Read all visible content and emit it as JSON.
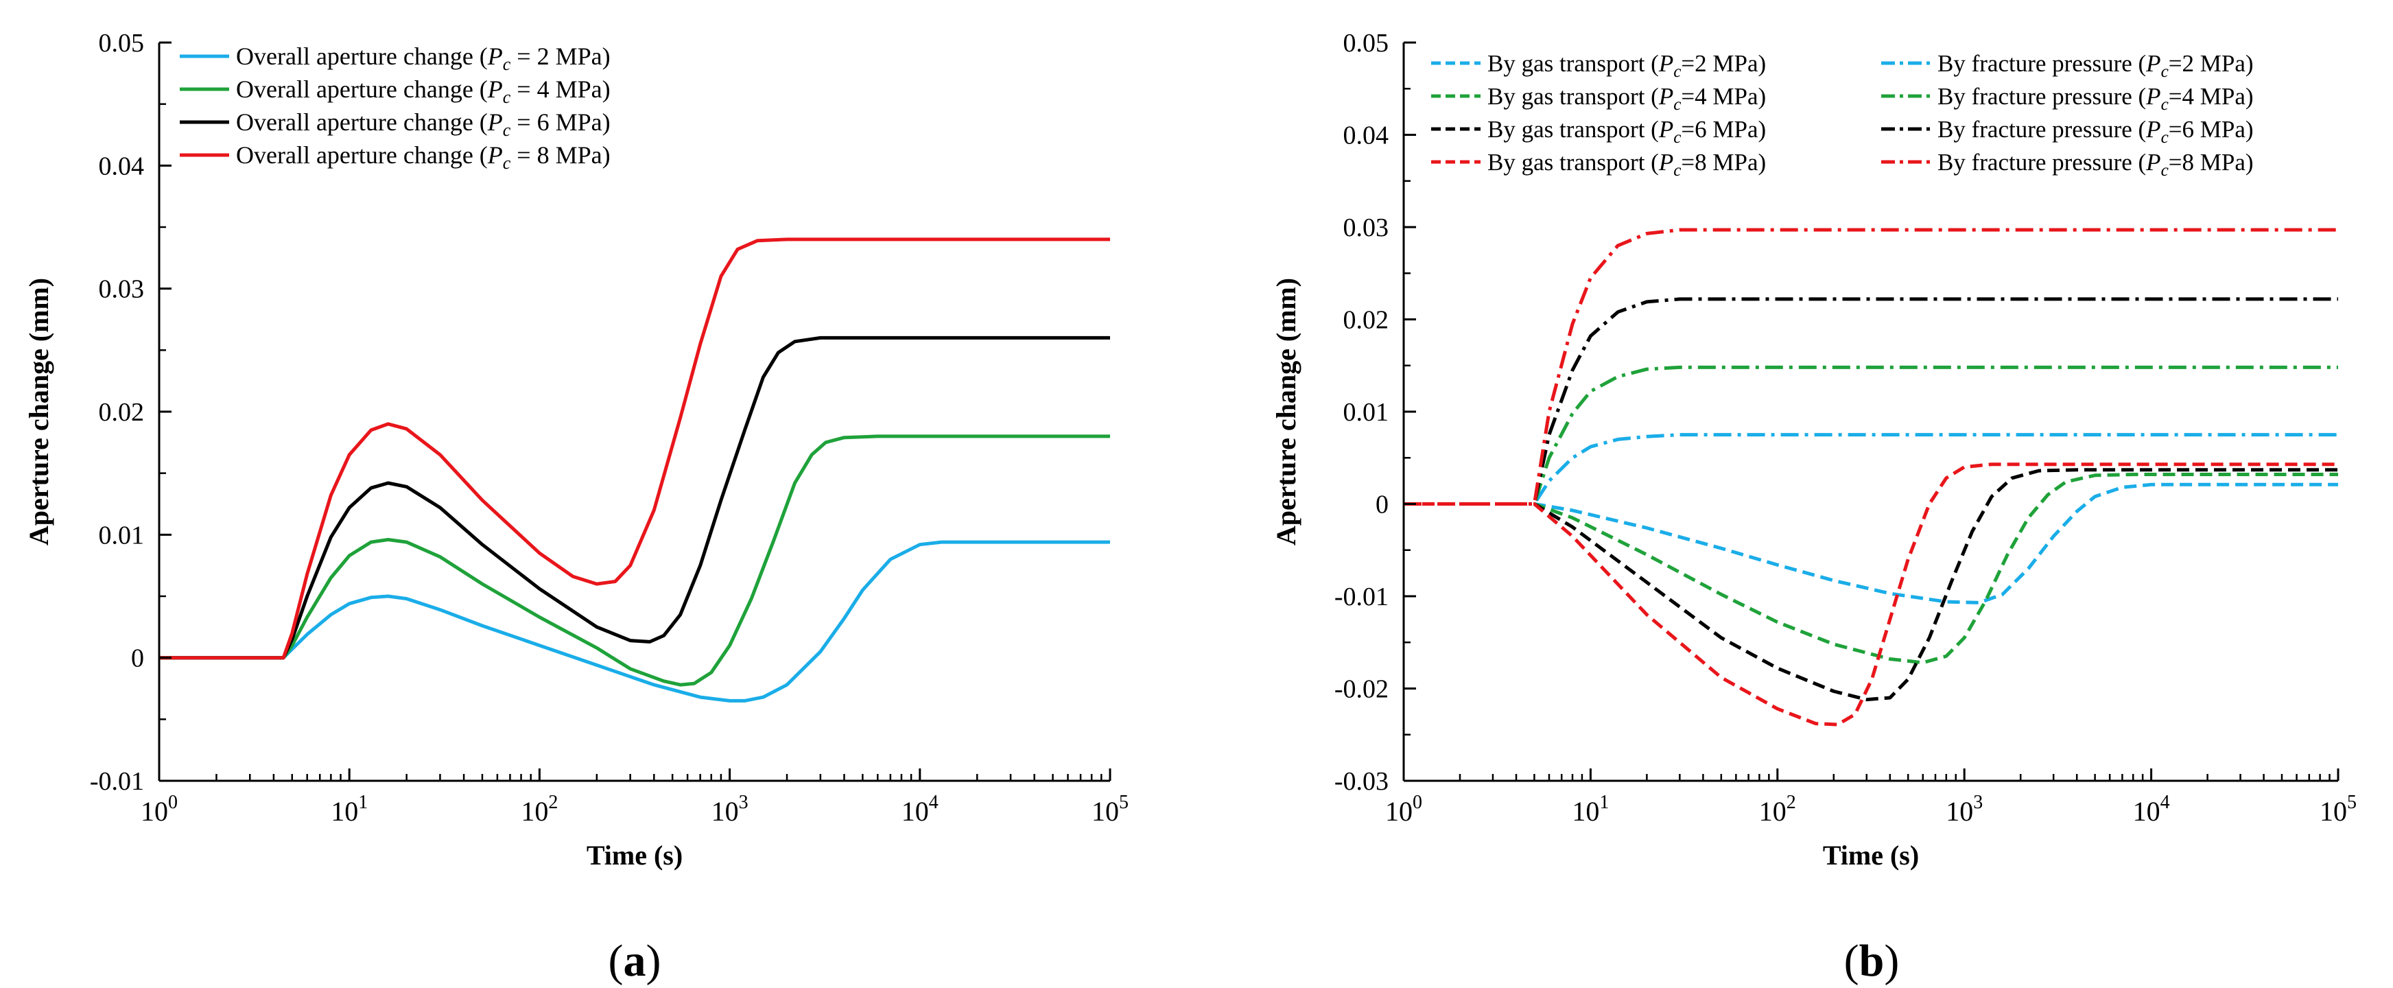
{
  "chart_data": [
    {
      "panel_label": "(a)",
      "type": "line",
      "xscale": "log",
      "xlim": [
        1,
        100000
      ],
      "ylim": [
        -0.01,
        0.05
      ],
      "xlabel": "Time (s)",
      "ylabel": "Aperture change (mm)",
      "x_ticks": [
        "10^0",
        "10^1",
        "10^2",
        "10^3",
        "10^4",
        "10^5"
      ],
      "y_ticks": [
        "-0.01",
        "0",
        "0.01",
        "0.02",
        "0.03",
        "0.04",
        "0.05"
      ],
      "legend_position": "top-left",
      "series": [
        {
          "name": "Overall aperture change (Pc = 2 MPa)",
          "legend_prefix": "Overall aperture change (",
          "legend_var": "P",
          "legend_sub": "c",
          "legend_suffix": " = 2 MPa)",
          "color": "#1AADE8",
          "dash": "solid",
          "points": [
            [
              1,
              0
            ],
            [
              4.5,
              0
            ],
            [
              5,
              0.0007
            ],
            [
              6,
              0.0019
            ],
            [
              8,
              0.0035
            ],
            [
              10,
              0.0044
            ],
            [
              13,
              0.0049
            ],
            [
              16,
              0.005
            ],
            [
              20,
              0.0048
            ],
            [
              30,
              0.0039
            ],
            [
              50,
              0.0026
            ],
            [
              100,
              0.001
            ],
            [
              200,
              -0.0006
            ],
            [
              400,
              -0.0022
            ],
            [
              700,
              -0.0032
            ],
            [
              1000,
              -0.0035
            ],
            [
              1200,
              -0.0035
            ],
            [
              1500,
              -0.0032
            ],
            [
              2000,
              -0.0022
            ],
            [
              3000,
              0.0005
            ],
            [
              4000,
              0.0032
            ],
            [
              5000,
              0.0055
            ],
            [
              7000,
              0.008
            ],
            [
              10000,
              0.0092
            ],
            [
              13000,
              0.0094
            ],
            [
              20000,
              0.0094
            ],
            [
              100000,
              0.0094
            ]
          ]
        },
        {
          "name": "Overall aperture change (Pc = 4 MPa)",
          "legend_prefix": "Overall aperture change (",
          "legend_var": "P",
          "legend_sub": "c",
          "legend_suffix": " = 4 MPa)",
          "color": "#1FA23A",
          "dash": "solid",
          "points": [
            [
              1,
              0
            ],
            [
              4.5,
              0
            ],
            [
              5,
              0.001
            ],
            [
              6,
              0.0033
            ],
            [
              8,
              0.0065
            ],
            [
              10,
              0.0083
            ],
            [
              13,
              0.0094
            ],
            [
              16,
              0.0096
            ],
            [
              20,
              0.0094
            ],
            [
              30,
              0.0082
            ],
            [
              50,
              0.006
            ],
            [
              100,
              0.0033
            ],
            [
              200,
              0.0008
            ],
            [
              300,
              -0.0009
            ],
            [
              450,
              -0.0019
            ],
            [
              550,
              -0.0022
            ],
            [
              650,
              -0.0021
            ],
            [
              800,
              -0.0012
            ],
            [
              1000,
              0.001
            ],
            [
              1300,
              0.0048
            ],
            [
              1700,
              0.0095
            ],
            [
              2200,
              0.0142
            ],
            [
              2700,
              0.0165
            ],
            [
              3200,
              0.0175
            ],
            [
              4000,
              0.0179
            ],
            [
              6000,
              0.018
            ],
            [
              100000,
              0.018
            ]
          ]
        },
        {
          "name": "Overall aperture change (Pc = 6 MPa)",
          "legend_prefix": "Overall aperture change (",
          "legend_var": "P",
          "legend_sub": "c",
          "legend_suffix": " = 6 MPa)",
          "color": "#000000",
          "dash": "solid",
          "points": [
            [
              1,
              0
            ],
            [
              4.5,
              0
            ],
            [
              5,
              0.0015
            ],
            [
              6,
              0.005
            ],
            [
              8,
              0.0098
            ],
            [
              10,
              0.0122
            ],
            [
              13,
              0.0138
            ],
            [
              16,
              0.0142
            ],
            [
              20,
              0.0139
            ],
            [
              30,
              0.0122
            ],
            [
              50,
              0.0092
            ],
            [
              100,
              0.0056
            ],
            [
              200,
              0.0025
            ],
            [
              300,
              0.0014
            ],
            [
              380,
              0.0013
            ],
            [
              450,
              0.0018
            ],
            [
              550,
              0.0035
            ],
            [
              700,
              0.0075
            ],
            [
              900,
              0.0128
            ],
            [
              1200,
              0.0185
            ],
            [
              1500,
              0.0228
            ],
            [
              1800,
              0.0248
            ],
            [
              2200,
              0.0257
            ],
            [
              3000,
              0.026
            ],
            [
              100000,
              0.026
            ]
          ]
        },
        {
          "name": "Overall aperture change (Pc = 8 MPa)",
          "legend_prefix": "Overall aperture change (",
          "legend_var": "P",
          "legend_sub": "c",
          "legend_suffix": " = 8 MPa)",
          "color": "#E8161B",
          "dash": "solid",
          "points": [
            [
              1,
              0
            ],
            [
              4.5,
              0
            ],
            [
              5,
              0.002
            ],
            [
              6,
              0.0068
            ],
            [
              8,
              0.0132
            ],
            [
              10,
              0.0165
            ],
            [
              13,
              0.0185
            ],
            [
              16,
              0.019
            ],
            [
              20,
              0.0186
            ],
            [
              30,
              0.0165
            ],
            [
              50,
              0.0128
            ],
            [
              100,
              0.0085
            ],
            [
              150,
              0.0066
            ],
            [
              200,
              0.006
            ],
            [
              250,
              0.0062
            ],
            [
              300,
              0.0075
            ],
            [
              400,
              0.012
            ],
            [
              550,
              0.0195
            ],
            [
              700,
              0.0255
            ],
            [
              900,
              0.031
            ],
            [
              1100,
              0.0332
            ],
            [
              1400,
              0.0339
            ],
            [
              2000,
              0.034
            ],
            [
              100000,
              0.034
            ]
          ]
        }
      ]
    },
    {
      "panel_label": "(b)",
      "type": "line",
      "xscale": "log",
      "xlim": [
        1,
        100000
      ],
      "ylim": [
        -0.03,
        0.05
      ],
      "xlabel": "Time (s)",
      "ylabel": "Aperture change (mm)",
      "x_ticks": [
        "10^0",
        "10^1",
        "10^2",
        "10^3",
        "10^4",
        "10^5"
      ],
      "y_ticks": [
        "-0.03",
        "-0.02",
        "-0.01",
        "0",
        "0.01",
        "0.02",
        "0.03",
        "0.04",
        "0.05"
      ],
      "legend_position": "top",
      "series": [
        {
          "name": "By gas transport (Pc=2 MPa)",
          "legend_prefix": "By gas transport (",
          "legend_var": "P",
          "legend_sub": "c",
          "legend_suffix": "=2 MPa)",
          "color": "#1AADE8",
          "dash": "dash",
          "points": [
            [
              1,
              0
            ],
            [
              5,
              0
            ],
            [
              8,
              -0.0007
            ],
            [
              20,
              -0.0026
            ],
            [
              50,
              -0.0048
            ],
            [
              100,
              -0.0066
            ],
            [
              200,
              -0.0083
            ],
            [
              400,
              -0.0097
            ],
            [
              800,
              -0.0106
            ],
            [
              1200,
              -0.0107
            ],
            [
              1600,
              -0.0098
            ],
            [
              2200,
              -0.007
            ],
            [
              3000,
              -0.0035
            ],
            [
              4000,
              -0.0008
            ],
            [
              5000,
              0.0008
            ],
            [
              7000,
              0.0018
            ],
            [
              10000,
              0.0021
            ],
            [
              100000,
              0.0021
            ]
          ]
        },
        {
          "name": "By gas transport (Pc=4 MPa)",
          "legend_prefix": "By gas transport (",
          "legend_var": "P",
          "legend_sub": "c",
          "legend_suffix": "=4 MPa)",
          "color": "#1FA23A",
          "dash": "dash",
          "points": [
            [
              1,
              0
            ],
            [
              5,
              0
            ],
            [
              8,
              -0.0015
            ],
            [
              20,
              -0.0055
            ],
            [
              50,
              -0.0098
            ],
            [
              100,
              -0.0128
            ],
            [
              200,
              -0.0152
            ],
            [
              400,
              -0.0168
            ],
            [
              600,
              -0.0172
            ],
            [
              800,
              -0.0165
            ],
            [
              1000,
              -0.0145
            ],
            [
              1300,
              -0.0105
            ],
            [
              1700,
              -0.0055
            ],
            [
              2200,
              -0.0015
            ],
            [
              2800,
              0.001
            ],
            [
              3500,
              0.0024
            ],
            [
              5000,
              0.0031
            ],
            [
              8000,
              0.0032
            ],
            [
              100000,
              0.0032
            ]
          ]
        },
        {
          "name": "By gas transport (Pc=6 MPa)",
          "legend_prefix": "By gas transport (",
          "legend_var": "P",
          "legend_sub": "c",
          "legend_suffix": "=6 MPa)",
          "color": "#000000",
          "dash": "dash",
          "points": [
            [
              1,
              0
            ],
            [
              5,
              0
            ],
            [
              8,
              -0.0025
            ],
            [
              20,
              -0.0085
            ],
            [
              50,
              -0.0145
            ],
            [
              100,
              -0.0178
            ],
            [
              200,
              -0.0203
            ],
            [
              300,
              -0.0212
            ],
            [
              400,
              -0.021
            ],
            [
              500,
              -0.019
            ],
            [
              650,
              -0.0145
            ],
            [
              850,
              -0.0085
            ],
            [
              1100,
              -0.003
            ],
            [
              1400,
              0.0008
            ],
            [
              1800,
              0.0028
            ],
            [
              2500,
              0.0036
            ],
            [
              4000,
              0.0037
            ],
            [
              100000,
              0.0037
            ]
          ]
        },
        {
          "name": "By gas transport (Pc=8 MPa)",
          "legend_prefix": "By gas transport (",
          "legend_var": "P",
          "legend_sub": "c",
          "legend_suffix": "=8 MPa)",
          "color": "#E8161B",
          "dash": "dash",
          "points": [
            [
              1,
              0
            ],
            [
              5,
              0
            ],
            [
              8,
              -0.0035
            ],
            [
              20,
              -0.012
            ],
            [
              50,
              -0.0188
            ],
            [
              100,
              -0.0222
            ],
            [
              160,
              -0.0238
            ],
            [
              210,
              -0.0239
            ],
            [
              260,
              -0.0228
            ],
            [
              320,
              -0.019
            ],
            [
              400,
              -0.0125
            ],
            [
              500,
              -0.006
            ],
            [
              650,
              0
            ],
            [
              800,
              0.0028
            ],
            [
              1000,
              0.004
            ],
            [
              1400,
              0.0043
            ],
            [
              2000,
              0.0043
            ],
            [
              100000,
              0.0043
            ]
          ]
        },
        {
          "name": "By fracture pressure (Pc=2 MPa)",
          "legend_prefix": "By fracture pressure (",
          "legend_var": "P",
          "legend_sub": "c",
          "legend_suffix": "=2 MPa)",
          "color": "#1AADE8",
          "dash": "dashdot",
          "points": [
            [
              1,
              0
            ],
            [
              5,
              0
            ],
            [
              6,
              0.0025
            ],
            [
              8,
              0.005
            ],
            [
              10,
              0.0062
            ],
            [
              14,
              0.007
            ],
            [
              20,
              0.0073
            ],
            [
              30,
              0.0075
            ],
            [
              100000,
              0.0075
            ]
          ]
        },
        {
          "name": "By fracture pressure (Pc=4 MPa)",
          "legend_prefix": "By fracture pressure (",
          "legend_var": "P",
          "legend_sub": "c",
          "legend_suffix": "=4 MPa)",
          "color": "#1FA23A",
          "dash": "dashdot",
          "points": [
            [
              1,
              0
            ],
            [
              5,
              0
            ],
            [
              6,
              0.005
            ],
            [
              8,
              0.0098
            ],
            [
              10,
              0.0122
            ],
            [
              14,
              0.0138
            ],
            [
              20,
              0.0146
            ],
            [
              30,
              0.0148
            ],
            [
              100000,
              0.0148
            ]
          ]
        },
        {
          "name": "By fracture pressure (Pc=6 MPa)",
          "legend_prefix": "By fracture pressure (",
          "legend_var": "P",
          "legend_sub": "c",
          "legend_suffix": "=6 MPa)",
          "color": "#000000",
          "dash": "dashdot",
          "points": [
            [
              1,
              0
            ],
            [
              5,
              0
            ],
            [
              6,
              0.0075
            ],
            [
              8,
              0.0145
            ],
            [
              10,
              0.0182
            ],
            [
              14,
              0.0208
            ],
            [
              20,
              0.0219
            ],
            [
              30,
              0.0222
            ],
            [
              100000,
              0.0222
            ]
          ]
        },
        {
          "name": "By fracture pressure (Pc=8 MPa)",
          "legend_prefix": "By fracture pressure (",
          "legend_var": "P",
          "legend_sub": "c",
          "legend_suffix": "=8 MPa)",
          "color": "#E8161B",
          "dash": "dashdot",
          "points": [
            [
              1,
              0
            ],
            [
              5,
              0
            ],
            [
              6,
              0.01
            ],
            [
              8,
              0.0195
            ],
            [
              10,
              0.0245
            ],
            [
              14,
              0.028
            ],
            [
              20,
              0.0293
            ],
            [
              30,
              0.0297
            ],
            [
              100000,
              0.0297
            ]
          ]
        }
      ]
    }
  ]
}
